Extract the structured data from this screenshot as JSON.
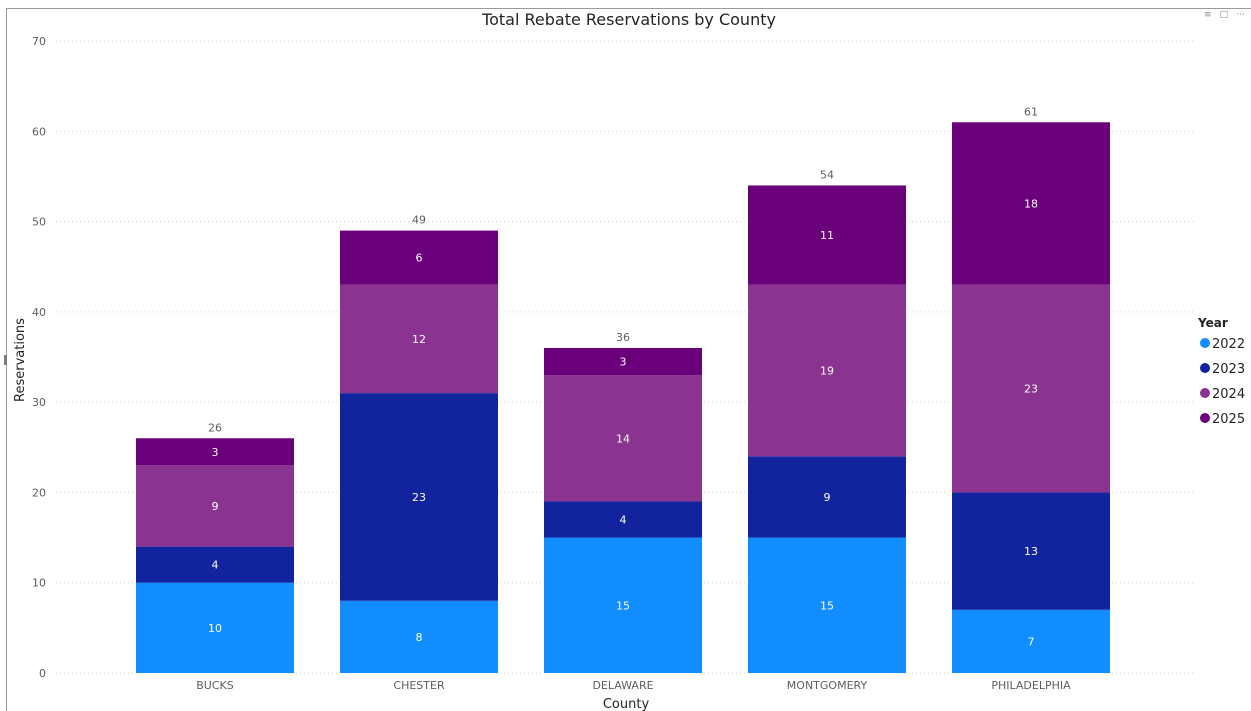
{
  "visual_header": {
    "filter_icon": "filter-icon",
    "focus_icon": "focus-mode-icon",
    "more_icon": "more-options-icon"
  },
  "chart_data": {
    "type": "bar",
    "stacked": true,
    "title": "Total Rebate Reservations by County",
    "xlabel": "County",
    "ylabel": "Reservations",
    "ylim": [
      0,
      70
    ],
    "yticks": [
      0,
      10,
      20,
      30,
      40,
      50,
      60,
      70
    ],
    "grid": true,
    "legend_title": "Year",
    "legend_position": "right",
    "categories": [
      "BUCKS",
      "CHESTER",
      "DELAWARE",
      "MONTGOMERY",
      "PHILADELPHIA"
    ],
    "series": [
      {
        "name": "2022",
        "color": "#118DFF",
        "values": [
          10,
          8,
          15,
          15,
          7
        ]
      },
      {
        "name": "2023",
        "color": "#12239E",
        "values": [
          4,
          23,
          4,
          9,
          13
        ]
      },
      {
        "name": "2024",
        "color": "#8A3391",
        "values": [
          9,
          12,
          14,
          19,
          23
        ]
      },
      {
        "name": "2025",
        "color": "#6B007B",
        "values": [
          3,
          6,
          3,
          11,
          18
        ]
      }
    ],
    "totals": [
      26,
      49,
      36,
      54,
      61
    ]
  }
}
